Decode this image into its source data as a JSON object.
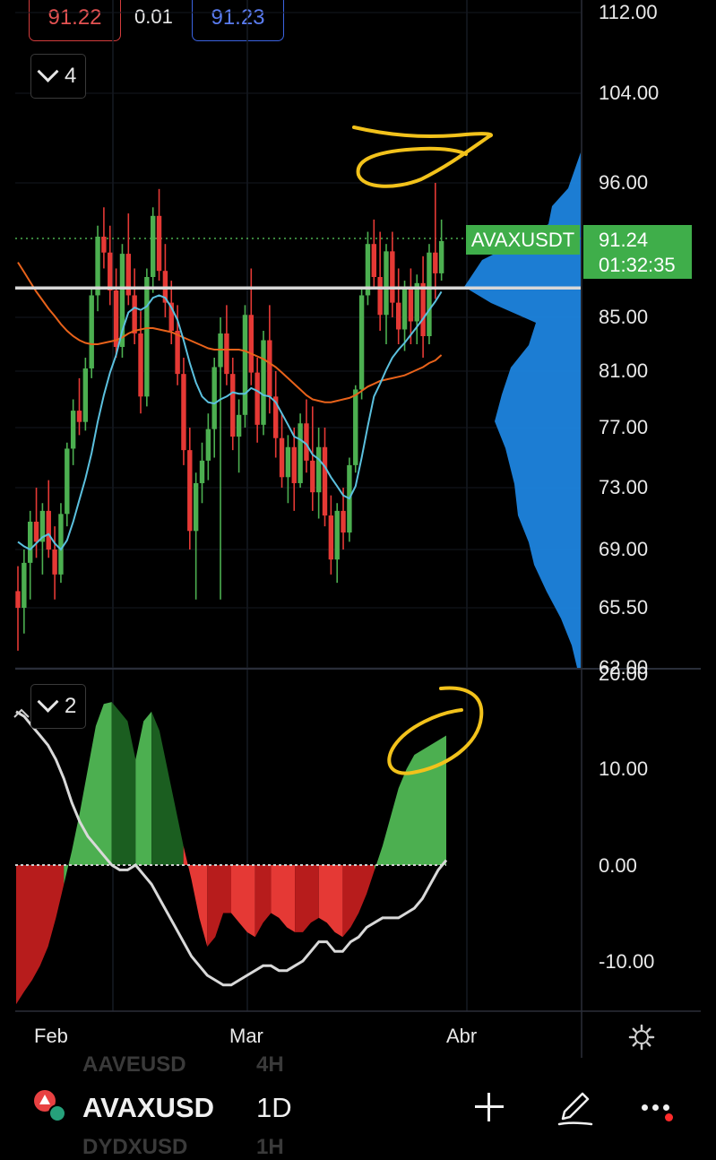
{
  "top": {
    "bid": "91.22",
    "spread": "0.01",
    "ask": "91.23"
  },
  "collapse_main": {
    "count": "4"
  },
  "collapse_osc": {
    "count": "2"
  },
  "symbol_tag": "AVAXUSDT",
  "last_price": "91.24",
  "countdown": "01:32:35",
  "colors": {
    "up": "#4caf50",
    "down": "#e53935",
    "ma_fast": "#5bc0de",
    "ma_slow": "#e8621a",
    "volume_profile": "#1e88e5",
    "annotation": "#f2c21b"
  },
  "chart_data": [
    {
      "type": "candlestick",
      "title": "",
      "price_axis_ticks": [
        "112.00",
        "104.00",
        "96.00",
        "85.00",
        "81.00",
        "77.00",
        "73.00",
        "69.00",
        "65.50",
        "62.00"
      ],
      "time_axis_ticks": [
        "Feb",
        "Mar",
        "Abr"
      ],
      "ylim": [
        62,
        112
      ],
      "horizontal_line": 87.4,
      "series": [
        {
          "name": "",
          "kind": "ohlc",
          "values": [
            [
              0,
              66.5,
              68,
              63,
              65.5
            ],
            [
              1,
              65.5,
              69,
              64,
              68.2
            ],
            [
              2,
              68.2,
              71.5,
              66,
              70.8
            ],
            [
              3,
              70.8,
              73,
              68.5,
              69.5
            ],
            [
              4,
              69.5,
              72,
              67.5,
              71.5
            ],
            [
              5,
              71.5,
              73.5,
              68.5,
              69
            ],
            [
              6,
              69,
              70.5,
              66,
              67.5
            ],
            [
              7,
              67.5,
              72,
              67,
              71.3
            ],
            [
              8,
              71.3,
              76,
              70.5,
              75.6
            ],
            [
              9,
              75.6,
              79,
              74.5,
              78.2
            ],
            [
              10,
              78.2,
              80.5,
              76.5,
              77.4
            ],
            [
              11,
              77.4,
              82,
              76.8,
              81.2
            ],
            [
              12,
              81.2,
              87.5,
              80.5,
              86.8
            ],
            [
              13,
              86.8,
              92.5,
              85.5,
              91.6
            ],
            [
              14,
              91.6,
              94,
              89,
              90.3
            ],
            [
              15,
              90.3,
              92.5,
              86,
              87.2
            ],
            [
              16,
              87.2,
              89,
              82,
              82.8
            ],
            [
              17,
              82.8,
              91,
              82,
              90.2
            ],
            [
              18,
              90.2,
              93.5,
              86,
              86.8
            ],
            [
              19,
              86.8,
              89,
              83,
              83.8
            ],
            [
              20,
              83.8,
              85.5,
              78,
              79.2
            ],
            [
              21,
              79.2,
              89,
              78.5,
              88.3
            ],
            [
              22,
              88.3,
              94,
              87,
              93.3
            ],
            [
              23,
              93.3,
              95.5,
              88,
              88.8
            ],
            [
              24,
              88.8,
              91,
              85,
              86.2
            ],
            [
              25,
              86.2,
              88,
              83,
              84
            ],
            [
              26,
              84,
              86,
              80,
              80.8
            ],
            [
              27,
              80.8,
              82,
              74.5,
              75.5
            ],
            [
              28,
              75.5,
              77,
              69,
              70.2
            ],
            [
              29,
              70.2,
              74,
              66,
              73.3
            ],
            [
              30,
              73.3,
              76,
              72,
              74.8
            ],
            [
              31,
              74.8,
              78,
              73.5,
              76.9
            ],
            [
              32,
              76.9,
              82,
              75,
              81.3
            ],
            [
              33,
              81.3,
              85,
              66,
              83.8
            ],
            [
              34,
              83.8,
              86,
              80,
              80.8
            ],
            [
              35,
              80.8,
              82,
              75.5,
              76.4
            ],
            [
              36,
              76.4,
              79,
              74,
              77.9
            ],
            [
              37,
              77.9,
              86,
              77,
              85.2
            ],
            [
              38,
              85.2,
              89,
              80,
              80.9
            ],
            [
              39,
              80.9,
              82,
              76,
              77.2
            ],
            [
              40,
              77.2,
              84,
              76.5,
              83.3
            ],
            [
              41,
              83.3,
              86,
              78,
              79.2
            ],
            [
              42,
              79.2,
              81,
              75,
              76.3
            ],
            [
              43,
              76.3,
              78,
              73,
              73.7
            ],
            [
              44,
              73.7,
              76.5,
              72,
              75.7
            ],
            [
              45,
              75.7,
              77,
              71.5,
              73.3
            ],
            [
              46,
              73.3,
              78,
              73,
              77.3
            ],
            [
              47,
              77.3,
              79,
              74,
              74.8
            ],
            [
              48,
              74.8,
              78.5,
              71.5,
              72.7
            ],
            [
              49,
              72.7,
              77,
              71,
              75.7
            ],
            [
              50,
              75.7,
              77,
              70.5,
              71.2
            ],
            [
              51,
              71.2,
              72.5,
              67.5,
              68.4
            ],
            [
              52,
              68.4,
              72,
              67,
              71.5
            ],
            [
              53,
              71.5,
              73,
              69,
              70.1
            ],
            [
              54,
              70.1,
              75,
              69.5,
              74.5
            ],
            [
              55,
              74.5,
              80,
              74,
              79.7
            ],
            [
              56,
              79.7,
              87.5,
              79,
              86.8
            ],
            [
              57,
              86.8,
              92,
              86,
              91
            ],
            [
              58,
              91,
              93,
              87.5,
              88.3
            ],
            [
              59,
              88.3,
              92,
              84,
              85.2
            ],
            [
              60,
              85.2,
              91,
              83,
              90.4
            ],
            [
              61,
              90.4,
              92,
              85,
              86.2
            ],
            [
              62,
              86.2,
              89,
              83,
              84.1
            ],
            [
              63,
              84.1,
              88,
              82.5,
              87.4
            ],
            [
              64,
              87.4,
              89,
              83,
              84.7
            ],
            [
              65,
              84.7,
              88.5,
              83,
              87.8
            ],
            [
              66,
              87.8,
              90,
              82,
              83.6
            ],
            [
              67,
              83.6,
              91,
              83,
              90.3
            ],
            [
              68,
              90.3,
              96,
              86.5,
              88.6
            ],
            [
              69,
              88.6,
              93,
              88,
              91.24
            ]
          ]
        },
        {
          "name": "",
          "kind": "line",
          "values": [
            69.5,
            69.2,
            69.0,
            69.4,
            69.8,
            70.0,
            69.4,
            69.0,
            69.6,
            70.8,
            72.2,
            73.6,
            75.3,
            77.4,
            79.3,
            80.9,
            82.2,
            84.0,
            85.4,
            85.8,
            85.6,
            85.9,
            86.6,
            86.8,
            86.6,
            85.8,
            84.8,
            83.3,
            81.6,
            80.2,
            79.2,
            78.8,
            78.7,
            79.0,
            79.2,
            79.5,
            79.4,
            79.4,
            79.8,
            79.6,
            79.3,
            79.2,
            78.8,
            78.0,
            77.2,
            76.4,
            76.2,
            75.9,
            75.2,
            74.9,
            74.4,
            73.7,
            73.1,
            72.5,
            72.3,
            73.1,
            75.0,
            77.1,
            79.2,
            80.1,
            81.1,
            82.0,
            82.6,
            83.1,
            83.7,
            84.3,
            84.9,
            85.6,
            86.3,
            87.1
          ]
        },
        {
          "name": "",
          "kind": "line",
          "values": [
            89.5,
            88.7,
            87.9,
            87.1,
            86.4,
            85.7,
            85.1,
            84.5,
            84.0,
            83.6,
            83.3,
            83.1,
            83.0,
            83.0,
            83.1,
            83.2,
            83.3,
            83.5,
            83.8,
            84.0,
            84.1,
            84.2,
            84.2,
            84.1,
            84.0,
            83.9,
            83.7,
            83.5,
            83.3,
            83.1,
            82.9,
            82.7,
            82.6,
            82.6,
            82.6,
            82.6,
            82.6,
            82.5,
            82.3,
            82.1,
            81.9,
            81.6,
            81.3,
            80.9,
            80.5,
            80.1,
            79.7,
            79.3,
            79.0,
            78.9,
            78.8,
            78.8,
            78.9,
            79.0,
            79.1,
            79.3,
            79.6,
            79.9,
            80.1,
            80.3,
            80.4,
            80.5,
            80.6,
            80.7,
            80.9,
            81.1,
            81.3,
            81.6,
            81.8,
            82.2
          ]
        }
      ]
    },
    {
      "type": "area",
      "title": "",
      "axis_ticks": [
        "20.00",
        "10.00",
        "0.00",
        "-10.00"
      ],
      "ylim": [
        -15,
        20
      ],
      "series": [
        {
          "name": "",
          "kind": "histogram",
          "values": [
            -14.5,
            -13.2,
            -12.0,
            -10.5,
            -8.5,
            -5.5,
            -2.0,
            1.5,
            5.5,
            10.0,
            14.5,
            16.8,
            17.0,
            16.0,
            15.0,
            11.0,
            15.0,
            16.0,
            14.0,
            10.0,
            6.0,
            2.0,
            -1.5,
            -5.5,
            -8.5,
            -7.5,
            -5.0,
            -5.0,
            -6.0,
            -7.0,
            -7.5,
            -6.0,
            -5.0,
            -5.5,
            -6.5,
            -7.0,
            -7.0,
            -6.0,
            -5.5,
            -6.0,
            -7.0,
            -7.5,
            -6.5,
            -5.0,
            -3.0,
            -0.5,
            2.0,
            5.0,
            8.0,
            10.0,
            11.5,
            12.0,
            12.5,
            13.0,
            13.5
          ]
        },
        {
          "name": "",
          "kind": "line",
          "values": [
            16.0,
            15.5,
            14.5,
            13.5,
            12.5,
            11.0,
            9.0,
            6.5,
            4.5,
            3.0,
            2.0,
            1.0,
            0.0,
            -0.5,
            -0.5,
            0.0,
            -1.0,
            -2.0,
            -3.5,
            -5.0,
            -6.5,
            -8.0,
            -9.5,
            -10.5,
            -11.5,
            -12.0,
            -12.5,
            -12.5,
            -12.0,
            -11.5,
            -11.0,
            -10.5,
            -10.5,
            -11.0,
            -11.0,
            -10.5,
            -10.0,
            -9.0,
            -8.0,
            -8.0,
            -9.0,
            -9.0,
            -8.0,
            -7.5,
            -6.5,
            -6.0,
            -5.5,
            -5.5,
            -5.5,
            -5.0,
            -4.5,
            -3.5,
            -2.0,
            -0.5,
            0.5
          ]
        }
      ]
    }
  ],
  "xaxis": {
    "feb": "Feb",
    "mar": "Mar",
    "abr": "Abr"
  },
  "toolbar": {
    "symbol": "AVAXUSD",
    "interval": "1D",
    "ghost_above_symbol": "AAVEUSD",
    "ghost_above_interval": "4H",
    "ghost_below_symbol": "DYDXUSD",
    "ghost_below_interval": "1H"
  }
}
